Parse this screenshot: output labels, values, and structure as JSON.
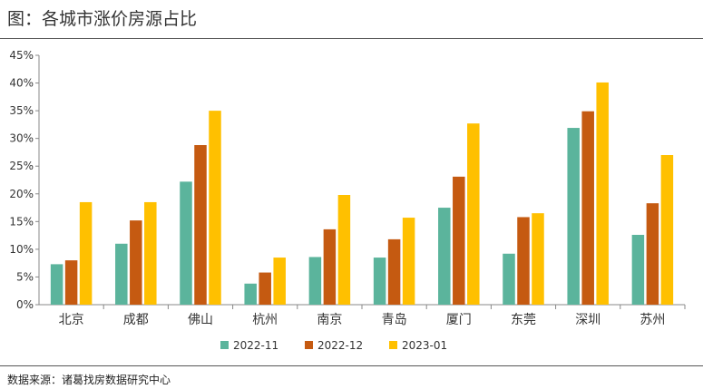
{
  "header": {
    "title": "图：各城市涨价房源占比"
  },
  "footer": {
    "source": "数据来源：诸葛找房数据研究中心"
  },
  "chart_data": {
    "type": "bar",
    "title": "图：各城市涨价房源占比",
    "xlabel": "",
    "ylabel": "",
    "categories": [
      "北京",
      "成都",
      "佛山",
      "杭州",
      "南京",
      "青岛",
      "厦门",
      "东莞",
      "深圳",
      "苏州"
    ],
    "series": [
      {
        "name": "2022-11",
        "color": "#5bb49c",
        "values": [
          7.3,
          11.0,
          22.2,
          3.8,
          8.6,
          8.5,
          17.5,
          9.2,
          31.9,
          12.6
        ]
      },
      {
        "name": "2022-12",
        "color": "#c55a11",
        "values": [
          8.0,
          15.2,
          28.8,
          5.8,
          13.6,
          11.8,
          23.1,
          15.8,
          34.9,
          18.3
        ]
      },
      {
        "name": "2023-01",
        "color": "#ffc000",
        "values": [
          18.5,
          18.5,
          35.0,
          8.5,
          19.8,
          15.7,
          32.7,
          16.5,
          40.1,
          27.0
        ]
      }
    ],
    "ylim": [
      0,
      45
    ],
    "yticks": [
      0,
      5,
      10,
      15,
      20,
      25,
      30,
      35,
      40,
      45
    ],
    "ytick_labels": [
      "0%",
      "5%",
      "10%",
      "15%",
      "20%",
      "25%",
      "30%",
      "35%",
      "40%",
      "45%"
    ],
    "grid": false,
    "legend_position": "bottom"
  }
}
